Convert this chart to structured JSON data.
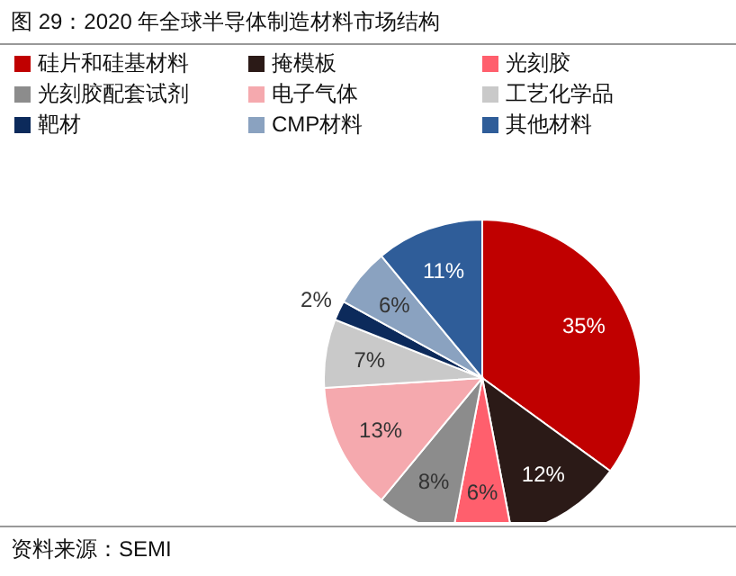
{
  "chart_data": {
    "type": "pie",
    "title": "图 29：2020 年全球半导体制造材料市场结构",
    "categories": [
      "硅片和硅基材料",
      "掩模板",
      "光刻胶",
      "光刻胶配套试剂",
      "电子气体",
      "工艺化学品",
      "靶材",
      "CMP材料",
      "其他材料"
    ],
    "values": [
      35,
      12,
      6,
      8,
      13,
      7,
      2,
      6,
      11
    ],
    "value_labels": [
      "35%",
      "12%",
      "6%",
      "8%",
      "13%",
      "7%",
      "2%",
      "6%",
      "11%"
    ],
    "colors": [
      "#c00000",
      "#2b1a17",
      "#ff5f6d",
      "#8c8c8c",
      "#f5a9ae",
      "#c9c9c9",
      "#0c2a5b",
      "#8aa2c0",
      "#2f5d99"
    ],
    "legend": "top",
    "annotations": [
      "资料来源：SEMI"
    ]
  }
}
